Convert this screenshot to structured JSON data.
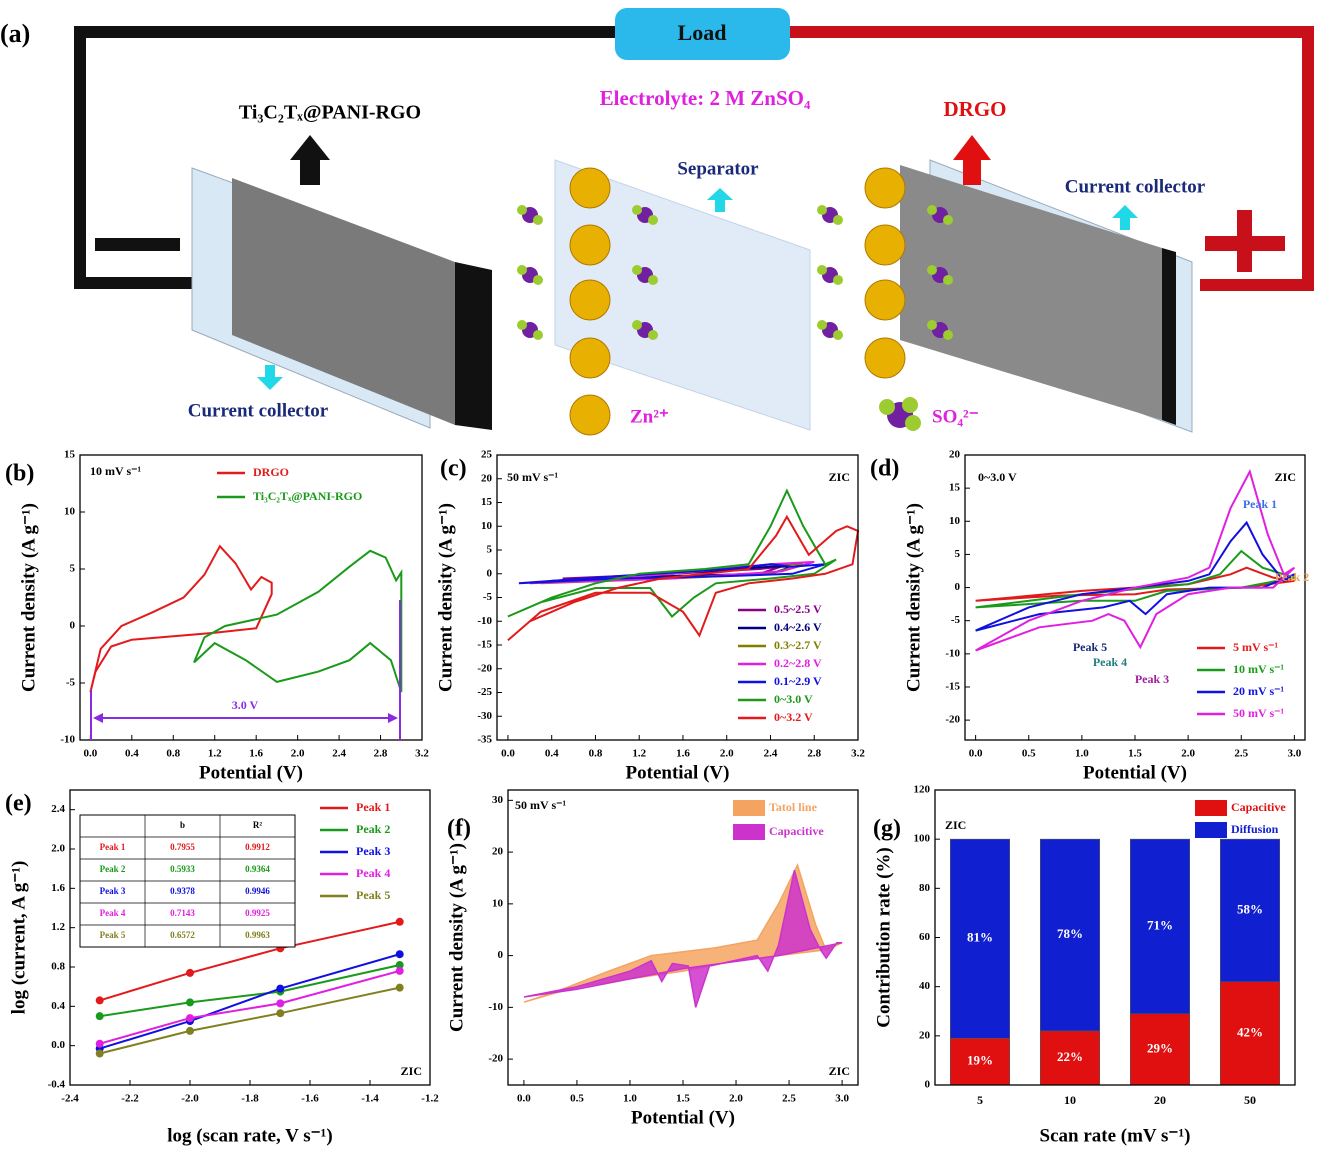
{
  "schematic": {
    "panel": "(a)",
    "load": "Load",
    "electrolyte": "Electrolyte: 2 M ZnSO₄",
    "anode": "Ti₃C₂Tₓ@PANI-RGO",
    "cathode": "DRGO",
    "separator": "Separator",
    "collector_right": "Current collector",
    "collector_left": "Current collector",
    "zn": "Zn²⁺",
    "so4": "SO₄²⁻"
  },
  "chart_data": [
    {
      "panel": "(b)",
      "type": "line",
      "annotations": [
        "10 mV s⁻¹",
        "3.0 V"
      ],
      "xlabel": "Potential (V)",
      "ylabel": "Current density (A g⁻¹)",
      "xlim": [
        -0.1,
        3.2
      ],
      "ylim": [
        -10,
        15
      ],
      "xticks": [
        {
          "value": 0,
          "label": "0.0"
        },
        0.4,
        0.8,
        1.2,
        1.6,
        {
          "value": 2,
          "label": "2.0"
        },
        2.4,
        2.8,
        3.2
      ],
      "yticks": [
        -10,
        -5,
        0,
        5,
        10,
        15
      ],
      "legend": "upper right",
      "series": [
        {
          "name": "DRGO",
          "color": "#e31a1c",
          "x": [
            0,
            0.1,
            0.3,
            0.6,
            0.9,
            1.1,
            1.25,
            1.4,
            1.55,
            1.65,
            1.75,
            1.75,
            1.6,
            1.2,
            0.8,
            0.4,
            0.2,
            0.05,
            0
          ],
          "values": [
            -5.8,
            -2,
            0,
            1.2,
            2.5,
            4.5,
            7,
            5.5,
            3.2,
            4.3,
            3.8,
            2.8,
            -0.2,
            -0.6,
            -0.9,
            -1.2,
            -1.8,
            -4,
            -5.8
          ]
        },
        {
          "name": "Ti₃C₂Tₓ@PANI-RGO",
          "color": "#1a9a1a",
          "x": [
            1,
            1.1,
            1.3,
            1.8,
            2.2,
            2.5,
            2.7,
            2.85,
            2.95,
            3,
            3,
            2.9,
            2.7,
            2.5,
            2.2,
            1.8,
            1.5,
            1.2,
            1
          ],
          "values": [
            -3.2,
            -1,
            0,
            1,
            3,
            5.2,
            6.6,
            6,
            4,
            4.7,
            -5.8,
            -3,
            -1.5,
            -3,
            -4,
            -4.9,
            -3,
            -1.5,
            -3.2
          ]
        }
      ]
    },
    {
      "panel": "(c)",
      "type": "line",
      "annotations": [
        "50 mV s⁻¹",
        "ZIC"
      ],
      "xlabel": "Potential (V)",
      "ylabel": "Current density (A g⁻¹)",
      "xlim": [
        -0.1,
        3.2
      ],
      "ylim": [
        -35,
        25
      ],
      "xticks": [
        {
          "value": 0,
          "label": "0.0"
        },
        0.4,
        0.8,
        1.2,
        1.6,
        {
          "value": 2,
          "label": "2.0"
        },
        2.4,
        2.8,
        3.2
      ],
      "yticks": [
        -35,
        -30,
        -25,
        -20,
        -15,
        -10,
        -5,
        0,
        5,
        10,
        15,
        20,
        25
      ],
      "legend": "lower right",
      "series": [
        {
          "name": "0.5~2.5 V",
          "color": "#8b008b",
          "x": [
            0.5,
            1.5,
            2.3,
            2.5,
            2.3,
            1.5,
            0.5
          ],
          "values": [
            -1,
            0,
            1,
            1.5,
            0,
            -0.5,
            -1
          ]
        },
        {
          "name": "0.4~2.6 V",
          "color": "#000080",
          "x": [
            0.4,
            1.5,
            2.4,
            2.6,
            2.4,
            1.5,
            0.4
          ],
          "values": [
            -1.5,
            0,
            1.5,
            1.5,
            0,
            -0.5,
            -1.5
          ]
        },
        {
          "name": "0.3~2.7 V",
          "color": "#808000",
          "x": [
            0.3,
            1.5,
            2.4,
            2.7,
            2.4,
            1.5,
            0.3
          ],
          "values": [
            -2,
            0,
            2,
            2,
            0,
            -1,
            -2
          ]
        },
        {
          "name": "0.2~2.8 V",
          "color": "#e020e0",
          "x": [
            0.2,
            1.5,
            2.4,
            2.8,
            2.5,
            1.5,
            0.2
          ],
          "values": [
            -2,
            0,
            2,
            2.5,
            0.5,
            -1,
            -2
          ]
        },
        {
          "name": "0.1~2.9 V",
          "color": "#1010e0",
          "x": [
            0.1,
            1,
            2,
            2.4,
            2.6,
            2.9,
            2.6,
            2,
            1,
            0.1
          ],
          "values": [
            -2,
            -0.5,
            1,
            2,
            1.5,
            2,
            0,
            -0.5,
            -1,
            -2
          ]
        },
        {
          "name": "0~3.0 V",
          "color": "#1a9a1a",
          "x": [
            0,
            0.4,
            0.8,
            1.2,
            1.8,
            2.2,
            2.4,
            2.55,
            2.7,
            2.9,
            3,
            2.8,
            2.4,
            1.9,
            1.7,
            1.5,
            1.3,
            0.8,
            0.3,
            0
          ],
          "values": [
            -9,
            -5,
            -2,
            0,
            1,
            2,
            10,
            17.5,
            10,
            2,
            3,
            0,
            -1,
            -2,
            -5,
            -9,
            -3,
            -3,
            -6,
            -9
          ]
        },
        {
          "name": "0~3.2 V",
          "color": "#e31a1c",
          "x": [
            0,
            0.2,
            0.6,
            1,
            1.4,
            1.8,
            2.2,
            2.45,
            2.55,
            2.65,
            2.75,
            2.85,
            3,
            3.1,
            3.2,
            3.15,
            2.9,
            2.6,
            2.2,
            1.9,
            1.75,
            1.6,
            1.3,
            0.8,
            0.3,
            0
          ],
          "values": [
            -14,
            -10,
            -6,
            -3,
            -1,
            0,
            1,
            8,
            12,
            8,
            4,
            6,
            9,
            10,
            9,
            2,
            0,
            -1,
            -2,
            -4,
            -13,
            -8,
            -4,
            -4,
            -8,
            -14
          ]
        }
      ]
    },
    {
      "panel": "(d)",
      "type": "line",
      "annotations": [
        "0~3.0 V",
        "ZIC",
        "Peak 1",
        "Peak 2",
        "Peak 3",
        "Peak 4",
        "Peak 5"
      ],
      "xlabel": "Potential (V)",
      "ylabel": "Current density (A g⁻¹)",
      "xlim": [
        -0.1,
        3.1
      ],
      "ylim": [
        -23,
        20
      ],
      "xticks": [
        {
          "value": 0,
          "label": "0.0"
        },
        0.5,
        {
          "value": 1,
          "label": "1.0"
        },
        1.5,
        {
          "value": 2,
          "label": "2.0"
        },
        2.5,
        {
          "value": 3,
          "label": "3.0"
        }
      ],
      "yticks": [
        -20,
        -15,
        -10,
        -5,
        0,
        5,
        10,
        15,
        20
      ],
      "legend": "lower right",
      "series": [
        {
          "name": "5 mV s⁻¹",
          "color": "#e31a1c",
          "x": [
            0,
            1,
            2,
            2.4,
            2.55,
            2.8,
            3,
            2.5,
            1.8,
            1.5,
            0.8,
            0
          ],
          "values": [
            -2,
            -0.5,
            0.5,
            2,
            3,
            1.5,
            1,
            0,
            -0.3,
            -1,
            -1.2,
            -2
          ]
        },
        {
          "name": "10 mV s⁻¹",
          "color": "#1a9a1a",
          "x": [
            0,
            1,
            2,
            2.3,
            2.5,
            2.7,
            3,
            2.5,
            1.8,
            1.5,
            1,
            0
          ],
          "values": [
            -3,
            -1,
            0.5,
            2,
            5.5,
            3,
            1.5,
            0,
            -0.5,
            -2,
            -2,
            -3
          ]
        },
        {
          "name": "20 mV s⁻¹",
          "color": "#1010e0",
          "x": [
            0,
            0.5,
            1,
            1.5,
            2,
            2.2,
            2.4,
            2.55,
            2.7,
            2.9,
            3,
            2.7,
            2.2,
            1.8,
            1.6,
            1.45,
            1.2,
            0.6,
            0
          ],
          "values": [
            -6.5,
            -3,
            -1,
            0,
            1,
            2,
            7,
            9.8,
            5,
            1,
            2,
            0,
            0,
            -1,
            -4,
            -2,
            -3,
            -4,
            -6.5
          ]
        },
        {
          "name": "50 mV s⁻¹",
          "color": "#e020e0",
          "x": [
            0,
            0.5,
            1,
            1.5,
            2,
            2.2,
            2.4,
            2.58,
            2.75,
            2.9,
            3,
            2.8,
            2.4,
            2,
            1.7,
            1.55,
            1.4,
            1.25,
            1.1,
            0.6,
            0
          ],
          "values": [
            -9.5,
            -5,
            -2,
            0,
            1.5,
            3,
            12,
            17.5,
            8,
            2,
            3,
            0,
            0,
            -1,
            -4,
            -9,
            -5,
            -4,
            -5,
            -6,
            -9.5
          ]
        }
      ]
    },
    {
      "panel": "(e)",
      "type": "scatter",
      "annotations": [
        "ZIC"
      ],
      "xlabel": "log (scan rate, V s⁻¹)",
      "ylabel": "log (current, A g⁻¹)",
      "xlim": [
        -2.4,
        -1.2
      ],
      "ylim": [
        -0.4,
        2.6
      ],
      "xticks": [
        -2.4,
        -2.2,
        {
          "value": -2,
          "label": "-2.0"
        },
        -1.8,
        -1.6,
        -1.4,
        -1.2
      ],
      "yticks": [
        -0.4,
        {
          "value": 0,
          "label": "0.0"
        },
        0.4,
        0.8,
        1.2,
        1.6,
        {
          "value": 2,
          "label": "2.0"
        },
        2.4
      ],
      "legend": "upper right",
      "x": [
        -2.301,
        -2,
        -1.699,
        -1.301
      ],
      "series": [
        {
          "name": "Peak 1",
          "color": "#e31a1c",
          "values": [
            0.46,
            0.74,
            0.99,
            1.26
          ]
        },
        {
          "name": "Peak 2",
          "color": "#1a9a1a",
          "values": [
            0.3,
            0.44,
            0.55,
            0.82
          ]
        },
        {
          "name": "Peak 3",
          "color": "#1010e0",
          "values": [
            -0.03,
            0.25,
            0.58,
            0.93
          ]
        },
        {
          "name": "Peak 4",
          "color": "#e020e0",
          "values": [
            0.02,
            0.28,
            0.43,
            0.76
          ]
        },
        {
          "name": "Peak 5",
          "color": "#808020",
          "values": [
            -0.08,
            0.15,
            0.33,
            0.59
          ]
        }
      ],
      "table": {
        "columns": [
          "b",
          "R²"
        ],
        "rows": [
          [
            "Peak 1",
            0.7955,
            0.9912
          ],
          [
            "Peak 2",
            0.5933,
            0.9364
          ],
          [
            "Peak 3",
            0.9378,
            0.9946
          ],
          [
            "Peak 4",
            0.7143,
            0.9925
          ],
          [
            "Peak 5",
            0.6572,
            0.9963
          ]
        ]
      }
    },
    {
      "panel": "(f)",
      "type": "area",
      "annotations": [
        "50 mV s⁻¹",
        "ZIC"
      ],
      "xlabel": "Potential (V)",
      "ylabel": "Current density (A g⁻¹)",
      "xlim": [
        -0.15,
        3.15
      ],
      "ylim": [
        -25,
        32
      ],
      "xticks": [
        {
          "value": 0,
          "label": "0.0"
        },
        0.5,
        {
          "value": 1,
          "label": "1.0"
        },
        1.5,
        {
          "value": 2,
          "label": "2.0"
        },
        2.5,
        {
          "value": 3,
          "label": "3.0"
        }
      ],
      "yticks": [
        -20,
        -10,
        0,
        10,
        20,
        30
      ],
      "legend": "upper right",
      "series": [
        {
          "name": "Tatol line",
          "color": "#f4a460",
          "x": [
            0,
            0.3,
            0.8,
            1.2,
            1.8,
            2.2,
            2.4,
            2.58,
            2.75,
            2.85,
            3,
            2.8,
            2.4,
            2,
            1.5,
            1,
            0.5,
            0
          ],
          "values": [
            -9,
            -7,
            -3,
            0,
            1.5,
            3,
            10,
            17.5,
            6,
            1,
            2.5,
            1,
            0,
            -1,
            -3,
            -4.5,
            -6,
            -9
          ]
        },
        {
          "name": "Capacitive",
          "color": "#cc33cc",
          "x": [
            0,
            0.5,
            1,
            1.2,
            1.3,
            1.4,
            1.55,
            1.62,
            1.75,
            2.2,
            2.3,
            2.4,
            2.55,
            2.7,
            2.8,
            2.85,
            2.95,
            3,
            2.4,
            1.5,
            0.5
          ],
          "values": [
            -8,
            -6,
            -3,
            -1,
            -5,
            -1.5,
            -2,
            -10,
            -2,
            0,
            -3,
            2,
            16.5,
            5,
            1,
            -0.5,
            2.5,
            2.5,
            0,
            -2.5,
            -6.5
          ]
        }
      ]
    },
    {
      "panel": "(g)",
      "type": "bar",
      "annotations": [
        "ZIC"
      ],
      "xlabel": "Scan rate (mV s⁻¹)",
      "ylabel": "Contribution rate (%)",
      "categories": [
        "5",
        "10",
        "20",
        "50"
      ],
      "ylim": [
        0,
        120
      ],
      "yticks": [
        0,
        20,
        40,
        60,
        80,
        100,
        120
      ],
      "legend": "upper right",
      "stacked": true,
      "series": [
        {
          "name": "Capacitive",
          "color": "#e01010",
          "values": [
            19,
            22,
            29,
            42
          ],
          "value_labels": [
            "19%",
            "22%",
            "29%",
            "42%"
          ]
        },
        {
          "name": "Diffusion",
          "color": "#1020d0",
          "values": [
            81,
            78,
            71,
            58
          ],
          "value_labels": [
            "81%",
            "78%",
            "71%",
            "58%"
          ]
        }
      ]
    }
  ]
}
